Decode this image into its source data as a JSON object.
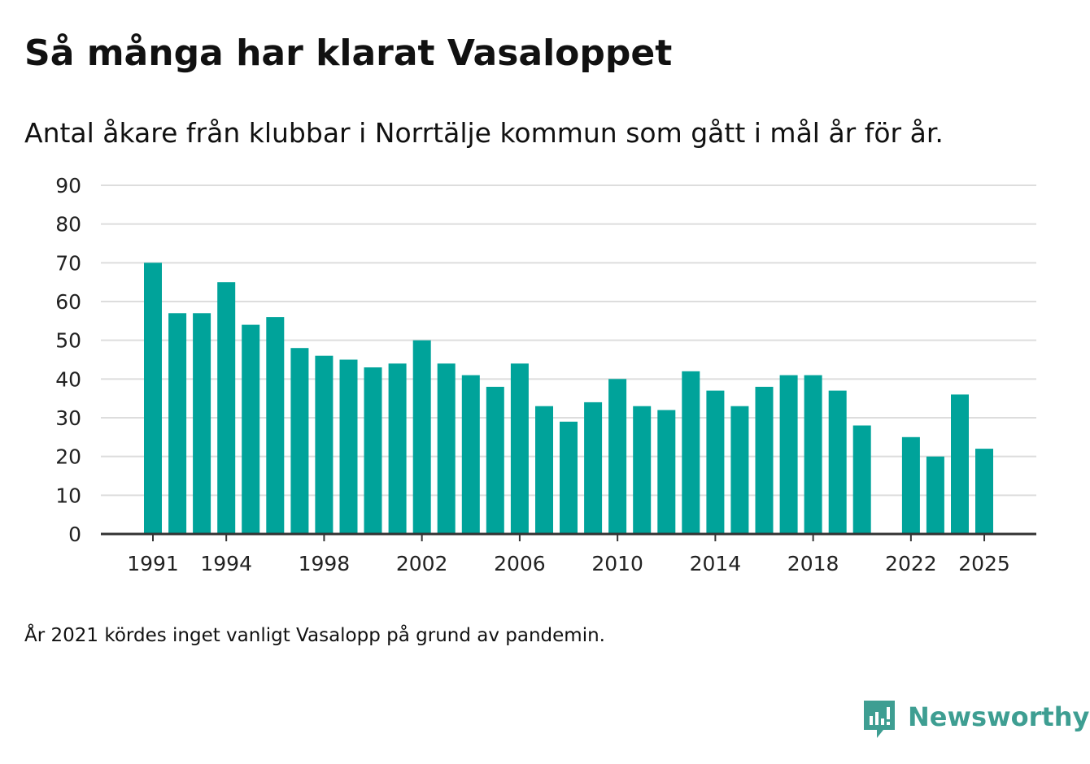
{
  "title": "Så många har klarat Vasaloppet",
  "subtitle": "Antal åkare från klubbar i Norrtälje kommun som gått i mål år för år.",
  "footnote": "År 2021 kördes inget vanligt Vasalopp på grund av pandemin.",
  "brand": {
    "name": "Newsworthy",
    "icon": "newsworthy-logo-icon",
    "color": "#3e9e92"
  },
  "colors": {
    "bar": "#00a39a",
    "grid": "#dddddd",
    "axis": "#333333"
  },
  "chart_data": {
    "type": "bar",
    "title": "Så många har klarat Vasaloppet",
    "xlabel": "",
    "ylabel": "",
    "ylim": [
      0,
      90
    ],
    "yticks": [
      0,
      10,
      20,
      30,
      40,
      50,
      60,
      70,
      80,
      90
    ],
    "xticks": [
      1991,
      1994,
      1998,
      2002,
      2006,
      2010,
      2014,
      2018,
      2022,
      2025
    ],
    "categories": [
      1991,
      1992,
      1993,
      1994,
      1995,
      1996,
      1997,
      1998,
      1999,
      2000,
      2001,
      2002,
      2003,
      2004,
      2005,
      2006,
      2007,
      2008,
      2009,
      2010,
      2011,
      2012,
      2013,
      2014,
      2015,
      2016,
      2017,
      2018,
      2019,
      2020,
      2021,
      2022,
      2023,
      2024,
      2025
    ],
    "values": [
      70,
      57,
      57,
      65,
      54,
      56,
      48,
      46,
      45,
      43,
      44,
      50,
      44,
      41,
      38,
      44,
      33,
      29,
      34,
      40,
      33,
      32,
      42,
      37,
      33,
      38,
      41,
      41,
      37,
      28,
      null,
      25,
      20,
      36,
      22
    ],
    "grid": true,
    "legend": "none"
  }
}
